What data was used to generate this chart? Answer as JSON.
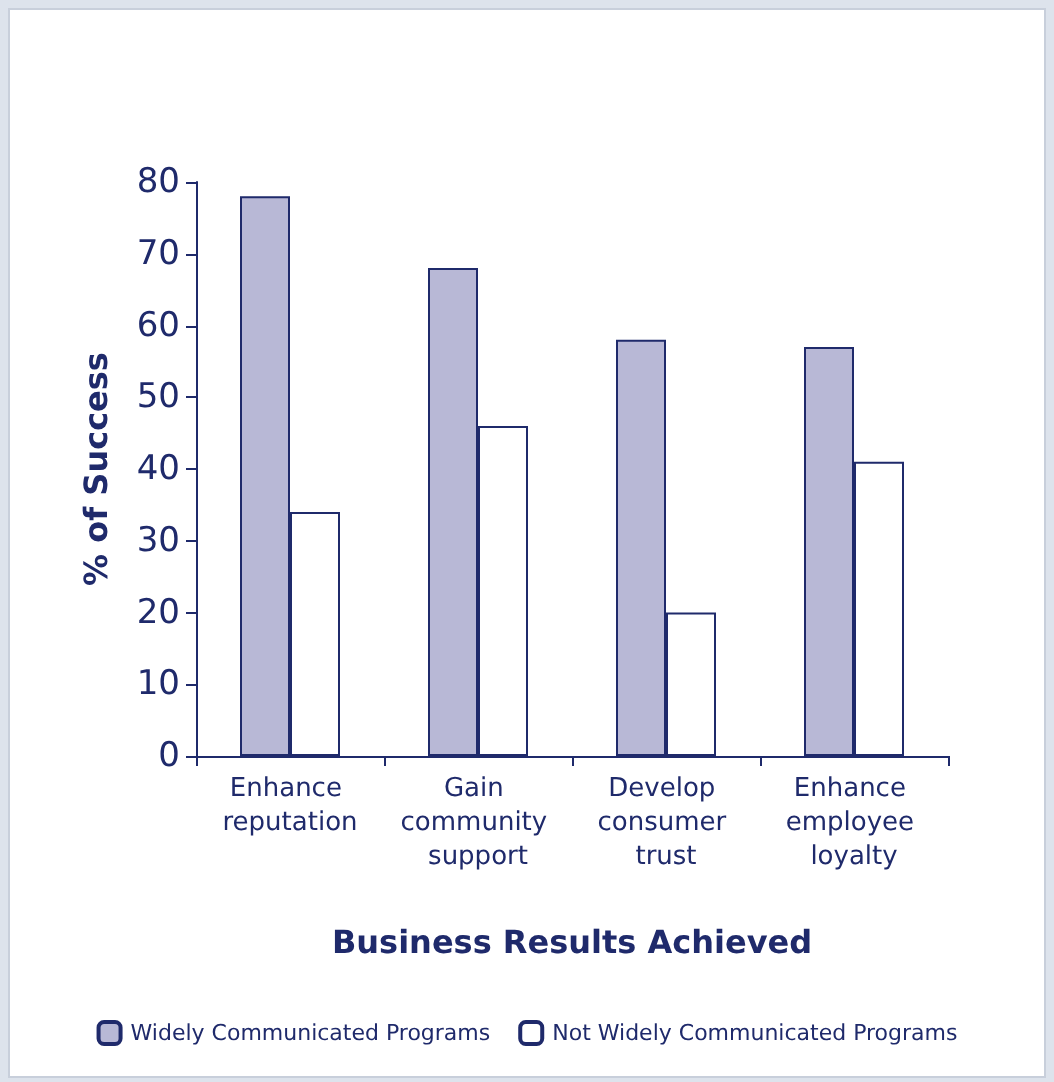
{
  "chart_data": {
    "type": "bar",
    "xlabel": "Business Results Achieved",
    "ylabel": "% of Success",
    "categories": [
      "Enhance reputation",
      "Gain community support",
      "Develop consumer trust",
      "Enhance employee loyalty"
    ],
    "series": [
      {
        "name": "Widely Communicated Programs",
        "color": "#b8b8d6",
        "values": [
          78,
          68,
          58,
          57
        ]
      },
      {
        "name": "Not Widely Communicated Programs",
        "color": "#ffffff",
        "values": [
          34,
          46,
          20,
          41
        ]
      }
    ],
    "ylim": [
      0,
      80
    ],
    "yticks": [
      0,
      10,
      20,
      30,
      40,
      50,
      60,
      70,
      80
    ],
    "grid": false,
    "legend": "bottom"
  }
}
